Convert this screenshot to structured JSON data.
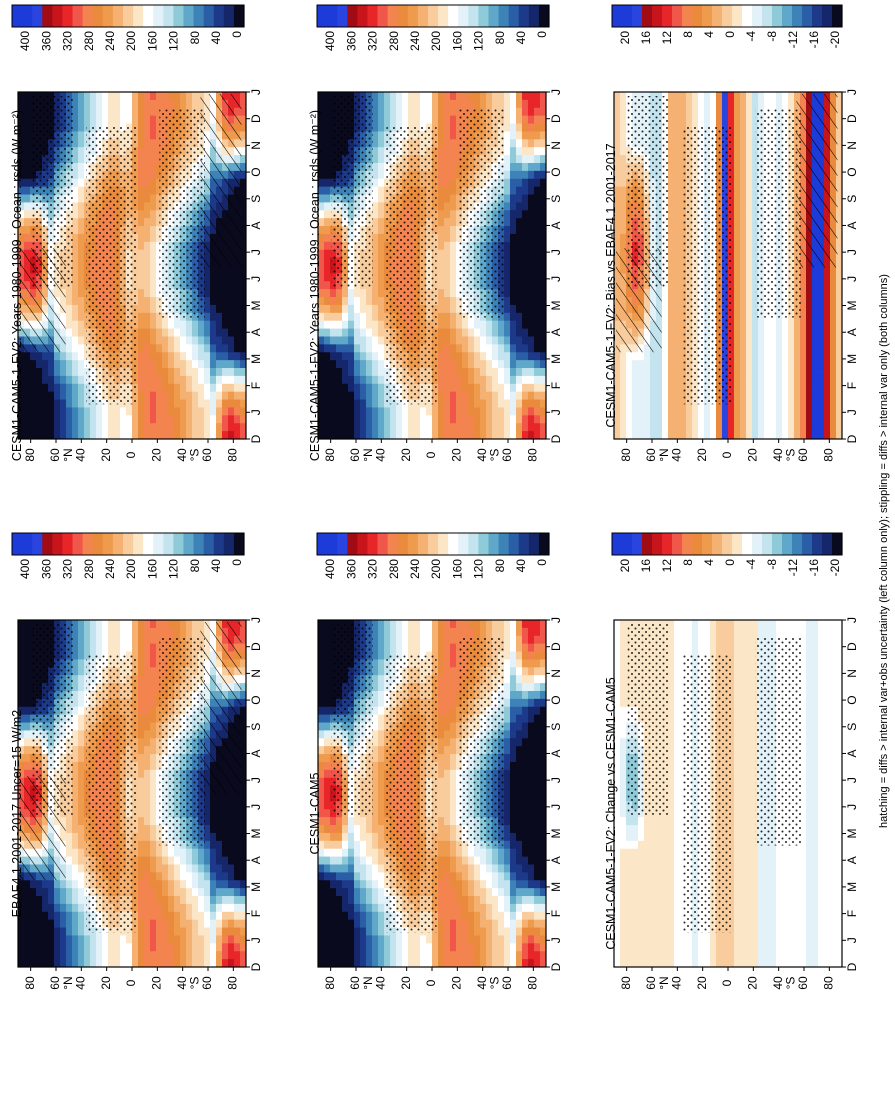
{
  "figure": {
    "footer": "hatching = diffs > internal var+obs uncertainty (left column only); stippling = diffs > internal var only (both columns)",
    "orientation": "rotated-90-clockwise"
  },
  "chart_data": [
    {
      "id": "p1",
      "type": "heatmap",
      "title": "CESM1-CAM5-1-FV2: Years 1980-1999 : Ocean : rsds (W m⁻²)",
      "x_ticks": [
        "D",
        "J",
        "F",
        "M",
        "A",
        "M",
        "J",
        "J",
        "A",
        "S",
        "O",
        "N",
        "D",
        "J"
      ],
      "y_ticks": [
        "80",
        "60",
        "40",
        "20",
        "0",
        "20",
        "40",
        "60",
        "80"
      ],
      "y_hemi": {
        "N": "°N",
        "S": "°S"
      },
      "y_range": [
        -90,
        90
      ],
      "months": 14,
      "colorbar": {
        "ticks": [
          "400",
          "360",
          "320",
          "280",
          "240",
          "200",
          "160",
          "120",
          "80",
          "40",
          "0"
        ],
        "colors": [
          "#1d3bd8",
          "#1d3bd8",
          "#2a44e0",
          "#a10b14",
          "#c8141b",
          "#e8262a",
          "#f0574a",
          "#f3844f",
          "#e98a3c",
          "#ee9b4e",
          "#f5b172",
          "#f8cc9c",
          "#fbe6c7",
          "#ffffff",
          "#e3f2f8",
          "#c3e3ee",
          "#8fcad9",
          "#5fa8c9",
          "#3e83b8",
          "#2a5ea6",
          "#1d3a8a",
          "#16266a",
          "#0a0a1e"
        ]
      },
      "hatch": true,
      "stipple": true
    },
    {
      "id": "p2",
      "type": "heatmap",
      "title": "CESM1-CAM5-1-FV2: Years 1980-1999 : Ocean : rsds (W m⁻²)",
      "x_ticks": [
        "D",
        "J",
        "F",
        "M",
        "A",
        "M",
        "J",
        "J",
        "A",
        "S",
        "O",
        "N",
        "D",
        "J"
      ],
      "y_ticks": [
        "80",
        "60",
        "40",
        "20",
        "0",
        "20",
        "40",
        "60",
        "80"
      ],
      "y_hemi": {
        "N": "°N",
        "S": "°S"
      },
      "y_range": [
        -90,
        90
      ],
      "months": 14,
      "colorbar": {
        "ticks": [
          "400",
          "360",
          "320",
          "280",
          "240",
          "200",
          "160",
          "120",
          "80",
          "40",
          "0"
        ],
        "colors": [
          "#1d3bd8",
          "#1d3bd8",
          "#2a44e0",
          "#a10b14",
          "#c8141b",
          "#e8262a",
          "#f0574a",
          "#f3844f",
          "#e98a3c",
          "#ee9b4e",
          "#f5b172",
          "#f8cc9c",
          "#fbe6c7",
          "#ffffff",
          "#e3f2f8",
          "#c3e3ee",
          "#8fcad9",
          "#5fa8c9",
          "#3e83b8",
          "#2a5ea6",
          "#1d3a8a",
          "#16266a",
          "#0a0a1e"
        ]
      },
      "hatch": false,
      "stipple": true
    },
    {
      "id": "p3",
      "type": "heatmap",
      "title": "EBAF4.1 2001-2017 Uncer=15 W/m2",
      "x_ticks": [
        "D",
        "J",
        "F",
        "M",
        "A",
        "M",
        "J",
        "J",
        "A",
        "S",
        "O",
        "N",
        "D",
        "J"
      ],
      "y_ticks": [
        "80",
        "60",
        "40",
        "20",
        "0",
        "20",
        "40",
        "60",
        "80"
      ],
      "y_hemi": {
        "N": "°N",
        "S": "°S"
      },
      "y_range": [
        -90,
        90
      ],
      "months": 14,
      "colorbar": {
        "ticks": [
          "400",
          "360",
          "320",
          "280",
          "240",
          "200",
          "160",
          "120",
          "80",
          "40",
          "0"
        ],
        "colors": [
          "#1d3bd8",
          "#1d3bd8",
          "#2a44e0",
          "#a10b14",
          "#c8141b",
          "#e8262a",
          "#f0574a",
          "#f3844f",
          "#e98a3c",
          "#ee9b4e",
          "#f5b172",
          "#f8cc9c",
          "#fbe6c7",
          "#ffffff",
          "#e3f2f8",
          "#c3e3ee",
          "#8fcad9",
          "#5fa8c9",
          "#3e83b8",
          "#2a5ea6",
          "#1d3a8a",
          "#16266a",
          "#0a0a1e"
        ]
      },
      "hatch": true,
      "stipple": true
    },
    {
      "id": "p4",
      "type": "heatmap",
      "title": "CESM1-CAM5",
      "x_ticks": [
        "D",
        "J",
        "F",
        "M",
        "A",
        "M",
        "J",
        "J",
        "A",
        "S",
        "O",
        "N",
        "D",
        "J"
      ],
      "y_ticks": [
        "80",
        "60",
        "40",
        "20",
        "0",
        "20",
        "40",
        "60",
        "80"
      ],
      "y_hemi": {
        "N": "°N",
        "S": "°S"
      },
      "y_range": [
        -90,
        90
      ],
      "months": 14,
      "colorbar": {
        "ticks": [
          "400",
          "360",
          "320",
          "280",
          "240",
          "200",
          "160",
          "120",
          "80",
          "40",
          "0"
        ],
        "colors": [
          "#1d3bd8",
          "#1d3bd8",
          "#2a44e0",
          "#a10b14",
          "#c8141b",
          "#e8262a",
          "#f0574a",
          "#f3844f",
          "#e98a3c",
          "#ee9b4e",
          "#f5b172",
          "#f8cc9c",
          "#fbe6c7",
          "#ffffff",
          "#e3f2f8",
          "#c3e3ee",
          "#8fcad9",
          "#5fa8c9",
          "#3e83b8",
          "#2a5ea6",
          "#1d3a8a",
          "#16266a",
          "#0a0a1e"
        ]
      },
      "hatch": false,
      "stipple": true
    },
    {
      "id": "p5",
      "type": "heatmap",
      "title": "CESM1-CAM5-1-FV2: Bias vs EBAF4.1 2001-2017",
      "x_ticks": [
        "D",
        "J",
        "F",
        "M",
        "A",
        "M",
        "J",
        "J",
        "A",
        "S",
        "O",
        "N",
        "D",
        "J"
      ],
      "y_ticks": [
        "80",
        "60",
        "40",
        "20",
        "0",
        "20",
        "40",
        "60",
        "80"
      ],
      "y_hemi": {
        "N": "°N",
        "S": "°S"
      },
      "y_range": [
        -90,
        90
      ],
      "months": 14,
      "colorbar": {
        "ticks": [
          "20",
          "16",
          "12",
          "8",
          "4",
          "0",
          "-4",
          "-8",
          "-12",
          "-16",
          "-20"
        ],
        "colors": [
          "#1d3bd8",
          "#1d3bd8",
          "#2a44e0",
          "#a10b14",
          "#c8141b",
          "#e8262a",
          "#f0574a",
          "#f3844f",
          "#e98a3c",
          "#ee9b4e",
          "#f5b172",
          "#f8cc9c",
          "#fbe6c7",
          "#ffffff",
          "#e3f2f8",
          "#c3e3ee",
          "#8fcad9",
          "#5fa8c9",
          "#3e83b8",
          "#2a5ea6",
          "#1d3a8a",
          "#16266a",
          "#0a0a1e"
        ]
      },
      "hatch": true,
      "stipple": true
    },
    {
      "id": "p6",
      "type": "heatmap",
      "title": "CESM1-CAM5-1-FV2: Change vs CESM1-CAM5",
      "x_ticks": [
        "D",
        "J",
        "F",
        "M",
        "A",
        "M",
        "J",
        "J",
        "A",
        "S",
        "O",
        "N",
        "D",
        "J"
      ],
      "y_ticks": [
        "80",
        "60",
        "40",
        "20",
        "0",
        "20",
        "40",
        "60",
        "80"
      ],
      "y_hemi": {
        "N": "°N",
        "S": "°S"
      },
      "y_range": [
        -90,
        90
      ],
      "months": 14,
      "colorbar": {
        "ticks": [
          "20",
          "16",
          "12",
          "8",
          "4",
          "0",
          "-4",
          "-8",
          "-12",
          "-16",
          "-20"
        ],
        "colors": [
          "#1d3bd8",
          "#1d3bd8",
          "#2a44e0",
          "#a10b14",
          "#c8141b",
          "#e8262a",
          "#f0574a",
          "#f3844f",
          "#e98a3c",
          "#ee9b4e",
          "#f5b172",
          "#f8cc9c",
          "#fbe6c7",
          "#ffffff",
          "#e3f2f8",
          "#c3e3ee",
          "#8fcad9",
          "#5fa8c9",
          "#3e83b8",
          "#2a5ea6",
          "#1d3a8a",
          "#16266a",
          "#0a0a1e"
        ]
      },
      "hatch": false,
      "stipple": true
    }
  ]
}
